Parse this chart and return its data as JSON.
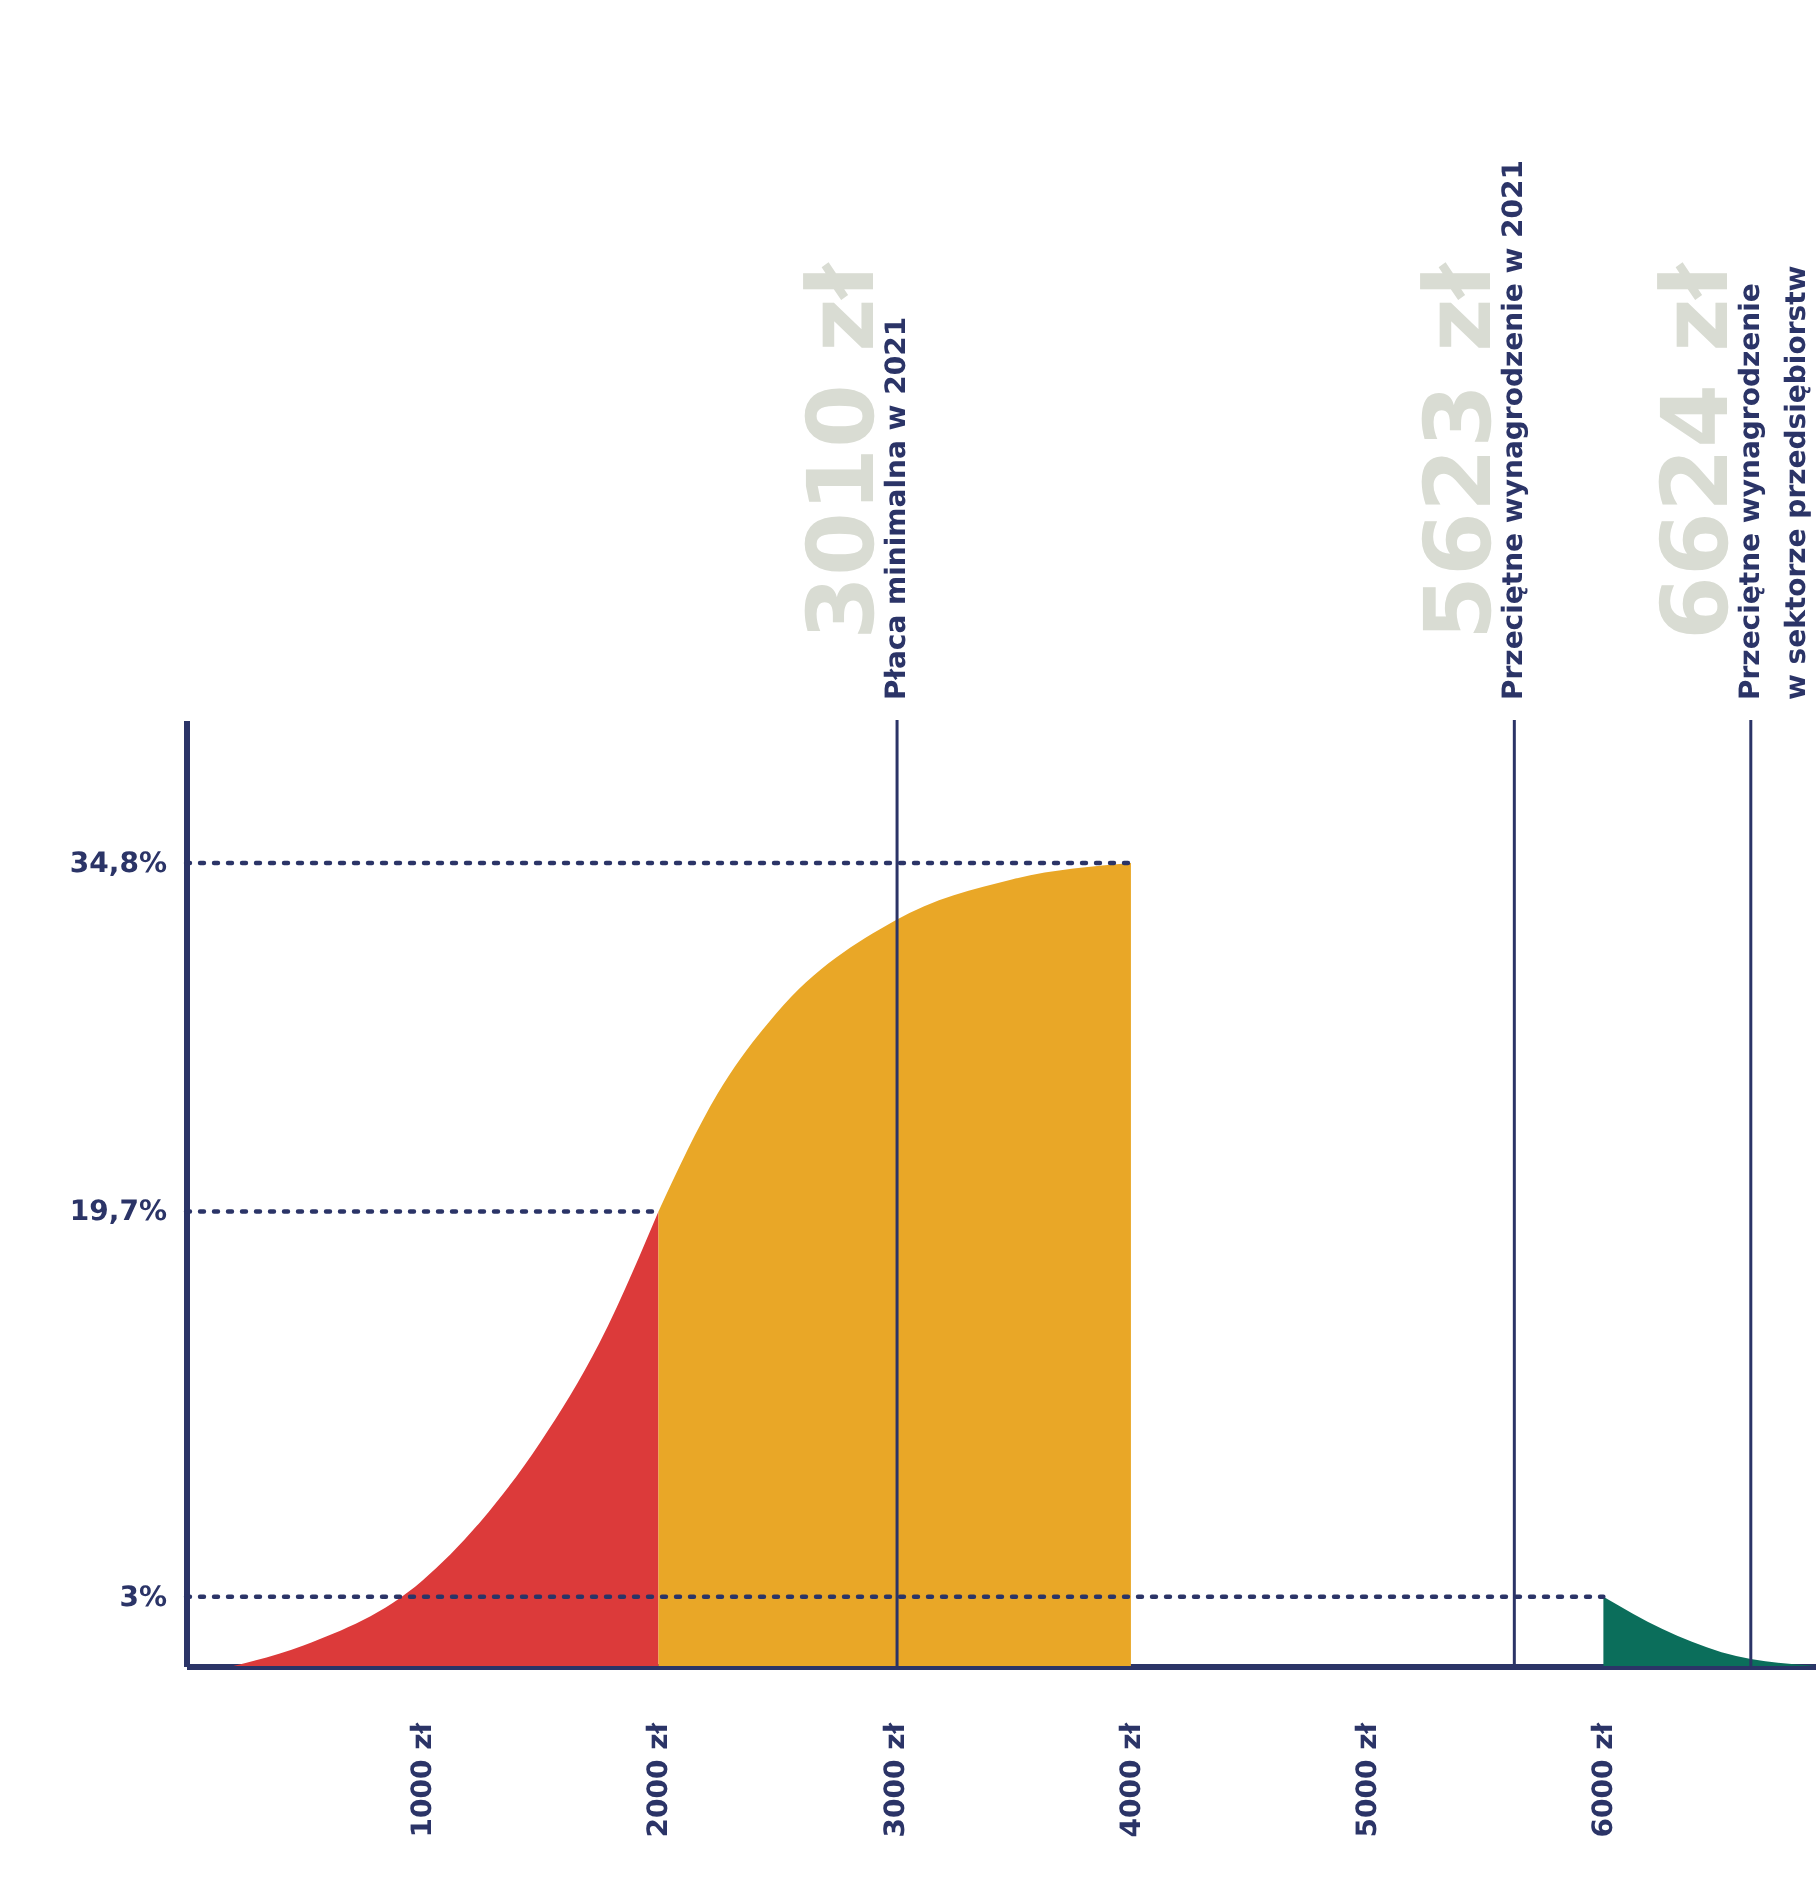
{
  "chart_data": {
    "type": "area",
    "xlim": [
      0,
      6900
    ],
    "ylim": [
      0,
      41
    ],
    "xticks": [
      {
        "value": 1000,
        "label": "1000 zł"
      },
      {
        "value": 2000,
        "label": "2000 zł"
      },
      {
        "value": 3000,
        "label": "3000 zł"
      },
      {
        "value": 4000,
        "label": "4000 zł"
      },
      {
        "value": 5000,
        "label": "5000 zł"
      },
      {
        "value": 6000,
        "label": "6000 zł"
      }
    ],
    "yticks": [
      {
        "value": 3,
        "label": "3%"
      },
      {
        "value": 19.7,
        "label": "19,7%"
      },
      {
        "value": 34.8,
        "label": "34,8%"
      }
    ],
    "grid": false,
    "series": [
      {
        "color": "#dc3a3a",
        "x": [
          200,
          500,
          1000,
          1250,
          1500,
          1750,
          2000
        ],
        "values": [
          0,
          0.9,
          3.7,
          6.3,
          9.7,
          14,
          19.7
        ]
      },
      {
        "color": "#e9a727",
        "x": [
          2000,
          2250,
          2500,
          3000,
          3500,
          4000
        ],
        "values": [
          19.7,
          24.8,
          28.3,
          32.3,
          34.1,
          34.8
        ]
      },
      {
        "color": "#0b6e5b",
        "x": [
          6000,
          6250,
          6500,
          6900
        ],
        "values": [
          3,
          1.6,
          0.6,
          0
        ]
      }
    ],
    "ref_lines": [
      {
        "axis": "y",
        "value": 3,
        "color": "#2b3467",
        "line_style": "dotted"
      },
      {
        "axis": "y",
        "value": 19.7,
        "color": "#2b3467",
        "line_style": "dotted"
      },
      {
        "axis": "y",
        "value": 34.8,
        "color": "#2b3467",
        "line_style": "dotted"
      },
      {
        "axis": "x",
        "value": 3010,
        "label": "Płaca minimalna w 2021",
        "color": "#2b3467"
      },
      {
        "axis": "x",
        "value": 5623,
        "label": "Przeciętne wynagrodzenie w 2021",
        "color": "#2b3467"
      },
      {
        "axis": "x",
        "value": 6624,
        "label": "Przeciętne wynagrodzenie\nw sektorze przedsiębiorstw",
        "color": "#2b3467"
      }
    ],
    "annotations": [
      "3010 zł",
      "5623 zł",
      "6624 zł"
    ]
  }
}
